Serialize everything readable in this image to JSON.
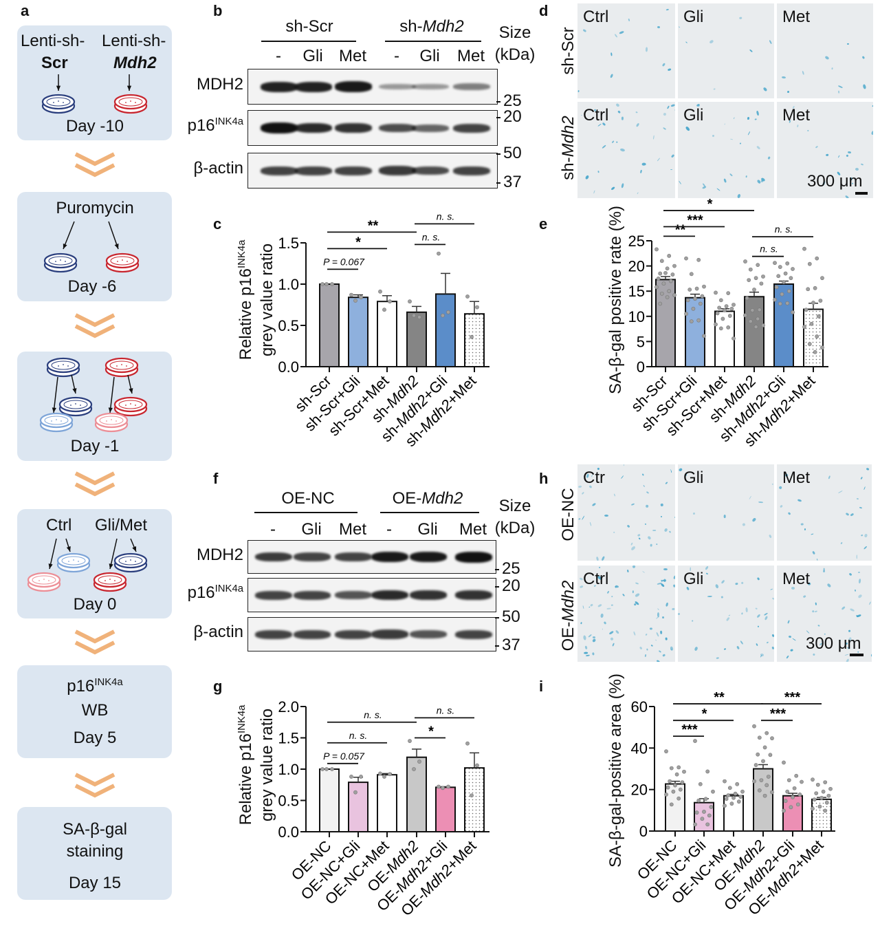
{
  "panel_letters": [
    "a",
    "b",
    "c",
    "d",
    "e",
    "f",
    "g",
    "h",
    "i"
  ],
  "colors": {
    "scr_blue": "#2b3f7e",
    "mdh2_red": "#c8262f",
    "light_blue": "#7ea5d8",
    "pink": "#ec8e96",
    "chevron": "#f0b27a",
    "box_bg": "#dce6f1",
    "stain": "#3aa0c8"
  },
  "schematic": {
    "step1": {
      "left_a": "Lenti-sh-",
      "left_b": "Scr",
      "right_a": "Lenti-sh-",
      "right_b": "Mdh2",
      "day": "Day -10"
    },
    "step2": {
      "title": "Puromycin",
      "day": "Day -6"
    },
    "step3": {
      "day": "Day -1"
    },
    "step4": {
      "left": "Ctrl",
      "right": "Gli/Met",
      "day": "Day 0"
    },
    "step5": {
      "title": "p16",
      "title_sup": "INK4a",
      "sub": "WB",
      "day": "Day 5"
    },
    "step6": {
      "title": "SA-β-gal",
      "sub": "staining",
      "day": "Day 15"
    }
  },
  "blot_b": {
    "group1": "sh-Scr",
    "group2_prefix": "sh-",
    "group2_italic": "Mdh2",
    "size_label": "Size",
    "unit_label": "(kDa)",
    "lanes": [
      "-",
      "Gli",
      "Met",
      "-",
      "Gli",
      "Met"
    ],
    "rows": [
      {
        "label": "MDH2",
        "sup": ""
      },
      {
        "label": "p16",
        "sup": "INK4a"
      },
      {
        "label": "β-actin",
        "sup": ""
      }
    ],
    "markers": [
      "25",
      "20",
      "50",
      "37"
    ]
  },
  "blot_f": {
    "group1": "OE-NC",
    "group2_prefix": "OE-",
    "group2_italic": "Mdh2",
    "size_label": "Size",
    "unit_label": "(kDa)",
    "lanes": [
      "-",
      "Gli",
      "Met",
      "-",
      "Gli",
      "Met"
    ],
    "rows": [
      {
        "label": "MDH2",
        "sup": ""
      },
      {
        "label": "p16",
        "sup": "INK4a"
      },
      {
        "label": "β-actin",
        "sup": ""
      }
    ],
    "markers": [
      "25",
      "20",
      "50",
      "37"
    ]
  },
  "images_d": {
    "rows": [
      {
        "prefix": "sh-",
        "italic": "Scr_plain"
      },
      {
        "prefix": "sh-",
        "italic": "Mdh2"
      }
    ],
    "row1": "sh-Scr",
    "row2_prefix": "sh-",
    "row2_italic": "Mdh2",
    "cols_row1": [
      "Ctrl",
      "Gli",
      "Met"
    ],
    "cols_row2": [
      "Ctrl",
      "Gli",
      "Met"
    ],
    "scale": "300 μm"
  },
  "images_h": {
    "row1": "OE-NC",
    "row2_prefix": "OE-",
    "row2_italic": "Mdh2",
    "cols_row1": [
      "Ctr",
      "Gli",
      "Met"
    ],
    "cols_row2": [
      "Ctrl",
      "Gli",
      "Met"
    ],
    "scale": "300 μm"
  },
  "chart_data": [
    {
      "id": "c",
      "type": "bar",
      "ylabel_a": "Relative p16",
      "ylabel_sup": "INK4a",
      "ylabel_b": "grey value ratio",
      "categories": [
        "sh-Scr",
        "sh-Scr+Gli",
        "sh-Scr+Met",
        "sh-Mdh2",
        "sh-Mdh2+Gli",
        "sh-Mdh2+Met"
      ],
      "ylim": [
        0,
        1.5
      ],
      "yticks": [
        "0.0",
        "0.5",
        "1.0",
        "1.5"
      ],
      "ytick_values": [
        0,
        0.5,
        1.0,
        1.5
      ],
      "values": [
        1.0,
        0.84,
        0.79,
        0.66,
        0.88,
        0.64
      ],
      "errors": [
        0,
        0.03,
        0.07,
        0.07,
        0.25,
        0.15
      ],
      "points": [
        [
          1,
          1,
          1
        ],
        [
          0.87,
          0.84,
          0.8
        ],
        [
          0.91,
          0.79,
          0.69
        ],
        [
          0.79,
          0.6,
          0.62
        ],
        [
          1.37,
          0.66,
          0.62
        ],
        [
          0.85,
          0.72,
          0.36
        ]
      ],
      "bar_colors": [
        "#a7a5ab",
        "#8eb0dd",
        "#ffffff",
        "#858585",
        "#5b8dc9",
        "dotted"
      ],
      "brackets": [
        {
          "from": 0,
          "to": 1,
          "y": 1.18,
          "label": "P = 0.067",
          "italic": true
        },
        {
          "from": 0,
          "to": 2,
          "y": 1.43,
          "label": "*"
        },
        {
          "from": 0,
          "to": 3,
          "y": 1.63,
          "label": "**"
        },
        {
          "from": 3,
          "to": 4,
          "y": 1.48,
          "label": "n. s.",
          "italic": true
        },
        {
          "from": 3,
          "to": 5,
          "y": 1.73,
          "label": "n. s.",
          "italic": true
        }
      ]
    },
    {
      "id": "e",
      "type": "bar",
      "ylabel_a": "SA-β-gal positive rate (%)",
      "categories": [
        "sh-Scr",
        "sh-Scr+Gli",
        "sh-Scr+Met",
        "sh-Mdh2",
        "sh-Mdh2+Gli",
        "sh-Mdh2+Met"
      ],
      "ylim": [
        0,
        25
      ],
      "yticks": [
        "0",
        "5",
        "10",
        "15",
        "20",
        "25"
      ],
      "ytick_values": [
        0,
        5,
        10,
        15,
        20,
        25
      ],
      "values": [
        17.3,
        13.7,
        11.0,
        13.9,
        16.4,
        11.4
      ],
      "errors": [
        0.6,
        0.7,
        0.5,
        0.9,
        0.6,
        1.2
      ],
      "points": [
        [
          23.3,
          22,
          21,
          20,
          19.5,
          18.5,
          18.3,
          18.6,
          17.5,
          17,
          16.5,
          15.8,
          15,
          14.5,
          14.2,
          13.8,
          12.5
        ],
        [
          21.5,
          21.2,
          18.4,
          15.9,
          15.5,
          15.3,
          14,
          13.5,
          13.2,
          12.5,
          11.5,
          10.5,
          9.2,
          9,
          6.1
        ],
        [
          14.7,
          14.6,
          13.2,
          12.3,
          12,
          11.7,
          11.5,
          11.2,
          10.6,
          10.1,
          9.5,
          8.4,
          7.8,
          7.6,
          5.6
        ],
        [
          20.9,
          20.2,
          19.3,
          17.9,
          17.6,
          17.2,
          16.5,
          15.3,
          13.6,
          11.3,
          11.2,
          10.2,
          9.5,
          9,
          8.2,
          7.9
        ],
        [
          20.6,
          20.5,
          19.8,
          19.4,
          18.5,
          18,
          17.6,
          16.8,
          15.8,
          15,
          14.4,
          13.3,
          12.6,
          12.5,
          10.8
        ],
        [
          23.4,
          21.5,
          20.4,
          17.6,
          15.6,
          15.4,
          13.1,
          12.7,
          11.3,
          10,
          8.5,
          7.9,
          6,
          4.5,
          3.8,
          2.9
        ]
      ],
      "bar_colors": [
        "#a7a5ab",
        "#8eb0dd",
        "#ffffff",
        "#858585",
        "#5b8dc9",
        "dotted"
      ],
      "brackets": [
        {
          "from": 0,
          "to": 1,
          "y": 25.9,
          "label": "**"
        },
        {
          "from": 0,
          "to": 2,
          "y": 27.8,
          "label": "***"
        },
        {
          "from": 0,
          "to": 3,
          "y": 31,
          "label": "*"
        },
        {
          "from": 3,
          "to": 4,
          "y": 21.9,
          "label": "n. s.",
          "italic": true
        },
        {
          "from": 3,
          "to": 5,
          "y": 25.8,
          "label": "n. s.",
          "italic": true
        }
      ]
    },
    {
      "id": "g",
      "type": "bar",
      "ylabel_a": "Relative p16",
      "ylabel_sup": "INK4a",
      "ylabel_b": "grey value ratio",
      "categories": [
        "OE-NC",
        "OE-NC+Gli",
        "OE-NC+Met",
        "OE-Mdh2",
        "OE-Mdh2+Gli",
        "OE-Mdh2+Met"
      ],
      "ylim": [
        0,
        2.0
      ],
      "yticks": [
        "0.0",
        "0.5",
        "1.0",
        "1.5",
        "2.0"
      ],
      "ytick_values": [
        0,
        0.5,
        1.0,
        1.5,
        2.0
      ],
      "values": [
        1.0,
        0.79,
        0.91,
        1.19,
        0.71,
        1.02
      ],
      "errors": [
        0,
        0.08,
        0.02,
        0.13,
        0.01,
        0.24
      ],
      "points": [
        [
          1,
          1,
          1
        ],
        [
          0.88,
          0.88,
          0.63
        ],
        [
          0.93,
          0.92,
          0.88
        ],
        [
          1.45,
          1.12,
          1.0
        ],
        [
          0.72,
          0.72,
          0.7
        ],
        [
          1.41,
          1.06,
          0.58
        ]
      ],
      "bar_colors": [
        "#f2f2f2",
        "#e9c3df",
        "#ffffff",
        "#c8c8c8",
        "#ec8fb4",
        "dotted"
      ],
      "brackets": [
        {
          "from": 0,
          "to": 1,
          "y": 1.09,
          "label": "P = 0.057",
          "italic": true
        },
        {
          "from": 0,
          "to": 2,
          "y": 1.42,
          "label": "n. s.",
          "italic": true
        },
        {
          "from": 0,
          "to": 3,
          "y": 1.75,
          "label": "n. s.",
          "italic": true
        },
        {
          "from": 3,
          "to": 4,
          "y": 1.5,
          "label": "*"
        },
        {
          "from": 3,
          "to": 5,
          "y": 1.82,
          "label": "n. s.",
          "italic": true
        }
      ]
    },
    {
      "id": "i",
      "type": "bar",
      "ylabel_a": "SA-β-gal-positive area (%)",
      "categories": [
        "OE-NC",
        "OE-NC+Gli",
        "OE-NC+Met",
        "OE-Mdh2",
        "OE-Mdh2+Gli",
        "OE-Mdh2+Met"
      ],
      "ylim": [
        0,
        60
      ],
      "yticks": [
        "0",
        "20",
        "40",
        "60"
      ],
      "ytick_values": [
        0,
        20,
        40,
        60
      ],
      "values": [
        22.7,
        13.7,
        17.0,
        30.0,
        17.0,
        15.3
      ],
      "errors": [
        1.3,
        1.9,
        0.7,
        2.0,
        1.2,
        0.9
      ],
      "points": [
        [
          38.4,
          30.7,
          30.3,
          28.6,
          27.3,
          24,
          23.5,
          22,
          21,
          20,
          19,
          17.6,
          15.7,
          12.8
        ],
        [
          43.4,
          28.7,
          22.6,
          19,
          15.5,
          14.7,
          11.6,
          9.3,
          8.9,
          7.5,
          5.9,
          3.2,
          3.2
        ],
        [
          24,
          22.6,
          20.8,
          19,
          18,
          17.2,
          16.5,
          16,
          15.5,
          14.2,
          13.2,
          12.2
        ],
        [
          50.5,
          47.2,
          45,
          44.7,
          40.3,
          36.9,
          36.7,
          33.7,
          31.8,
          26.2,
          24.5,
          24,
          22.1,
          19.6,
          18.7,
          17
        ],
        [
          33,
          26.6,
          24.5,
          23.7,
          20.6,
          19,
          17.6,
          16.3,
          14.5,
          12.8,
          11.5,
          9.8
        ],
        [
          24.8,
          23.5,
          22.3,
          20.3,
          19,
          18.2,
          17,
          16,
          15.2,
          13.7,
          11.8,
          10.8,
          9.8
        ]
      ],
      "bar_colors": [
        "#f2f2f2",
        "#e9c3df",
        "#ffffff",
        "#c8c8c8",
        "#ec8fb4",
        "dotted"
      ],
      "brackets": [
        {
          "from": 0,
          "to": 1,
          "y": 45.7,
          "label": "***"
        },
        {
          "from": 0,
          "to": 2,
          "y": 53.3,
          "label": "*"
        },
        {
          "from": 0,
          "to": 3,
          "y": 61.3,
          "label": "**"
        },
        {
          "from": 3,
          "to": 4,
          "y": 53.3,
          "label": "***"
        },
        {
          "from": 3,
          "to": 5,
          "y": 61.3,
          "label": "***"
        }
      ]
    }
  ]
}
